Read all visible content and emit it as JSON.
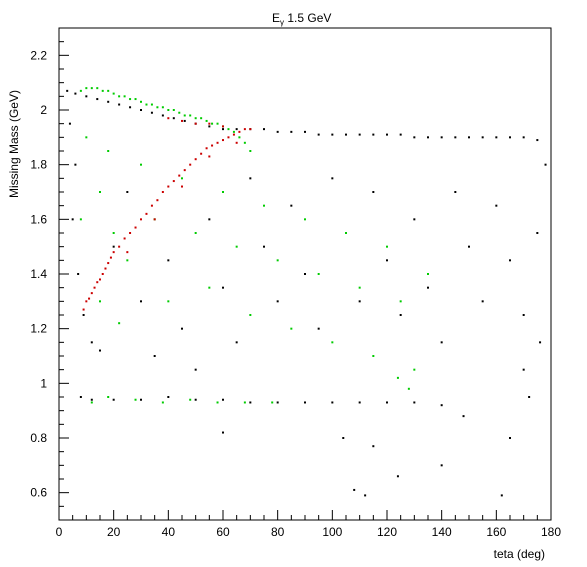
{
  "chart_data": {
    "type": "scatter",
    "title_main": "E",
    "title_sub": "γ",
    "title_rest": " 1.5 GeV",
    "xlabel": "teta (deg)",
    "ylabel": "Missing Mass (GeV)",
    "xlim": [
      0,
      180
    ],
    "ylim": [
      0.5,
      2.3
    ],
    "x_ticks": [
      0,
      20,
      40,
      60,
      80,
      100,
      120,
      140,
      160,
      180
    ],
    "x_tick_labels": [
      "0",
      "20",
      "40",
      "60",
      "80",
      "100",
      "120",
      "140",
      "160",
      "180"
    ],
    "y_ticks": [
      0.6,
      0.8,
      1.0,
      1.2,
      1.4,
      1.6,
      1.8,
      2.0,
      2.2
    ],
    "y_tick_labels": [
      "0.6",
      "0.8",
      "1",
      "1.2",
      "1.4",
      "1.6",
      "1.8",
      "2",
      "2.2"
    ],
    "grid": false,
    "series": [
      {
        "color": "#000000",
        "points": [
          [
            3,
            2.07
          ],
          [
            6,
            2.06
          ],
          [
            10,
            2.05
          ],
          [
            14,
            2.04
          ],
          [
            18,
            2.03
          ],
          [
            22,
            2.02
          ],
          [
            26,
            2.01
          ],
          [
            30,
            2.0
          ],
          [
            34,
            1.99
          ],
          [
            38,
            1.98
          ],
          [
            42,
            1.97
          ],
          [
            46,
            1.96
          ],
          [
            50,
            1.95
          ],
          [
            55,
            1.94
          ],
          [
            60,
            1.93
          ],
          [
            65,
            1.93
          ],
          [
            70,
            1.93
          ],
          [
            75,
            1.93
          ],
          [
            80,
            1.92
          ],
          [
            85,
            1.92
          ],
          [
            90,
            1.92
          ],
          [
            95,
            1.91
          ],
          [
            100,
            1.91
          ],
          [
            105,
            1.91
          ],
          [
            110,
            1.91
          ],
          [
            115,
            1.91
          ],
          [
            120,
            1.91
          ],
          [
            125,
            1.91
          ],
          [
            130,
            1.9
          ],
          [
            135,
            1.9
          ],
          [
            140,
            1.9
          ],
          [
            145,
            1.9
          ],
          [
            150,
            1.9
          ],
          [
            155,
            1.9
          ],
          [
            160,
            1.9
          ],
          [
            165,
            1.9
          ],
          [
            170,
            1.9
          ],
          [
            175,
            1.89
          ],
          [
            4,
            1.95
          ],
          [
            6,
            1.8
          ],
          [
            5,
            1.6
          ],
          [
            7,
            1.4
          ],
          [
            9,
            1.25
          ],
          [
            12,
            1.15
          ],
          [
            15,
            1.12
          ],
          [
            20,
            1.5
          ],
          [
            25,
            1.7
          ],
          [
            30,
            1.3
          ],
          [
            35,
            1.1
          ],
          [
            40,
            1.45
          ],
          [
            45,
            1.2
          ],
          [
            50,
            1.05
          ],
          [
            55,
            1.6
          ],
          [
            60,
            1.35
          ],
          [
            65,
            1.15
          ],
          [
            70,
            1.75
          ],
          [
            75,
            1.5
          ],
          [
            80,
            1.3
          ],
          [
            85,
            1.65
          ],
          [
            90,
            1.4
          ],
          [
            95,
            1.2
          ],
          [
            100,
            1.75
          ],
          [
            105,
            1.55
          ],
          [
            110,
            1.3
          ],
          [
            115,
            1.7
          ],
          [
            120,
            1.45
          ],
          [
            125,
            1.25
          ],
          [
            130,
            1.6
          ],
          [
            135,
            1.35
          ],
          [
            140,
            1.15
          ],
          [
            145,
            1.7
          ],
          [
            150,
            1.5
          ],
          [
            155,
            1.3
          ],
          [
            160,
            1.65
          ],
          [
            165,
            1.45
          ],
          [
            170,
            1.25
          ],
          [
            175,
            1.55
          ],
          [
            178,
            1.8
          ],
          [
            8,
            0.95
          ],
          [
            12,
            0.94
          ],
          [
            20,
            0.94
          ],
          [
            30,
            0.94
          ],
          [
            40,
            0.95
          ],
          [
            50,
            0.94
          ],
          [
            60,
            0.94
          ],
          [
            70,
            0.93
          ],
          [
            80,
            0.93
          ],
          [
            90,
            0.93
          ],
          [
            100,
            0.93
          ],
          [
            110,
            0.93
          ],
          [
            120,
            0.93
          ],
          [
            130,
            0.93
          ],
          [
            140,
            0.92
          ],
          [
            148,
            0.88
          ],
          [
            104,
            0.8
          ],
          [
            115,
            0.77
          ],
          [
            60,
            0.82
          ],
          [
            108,
            0.61
          ],
          [
            112,
            0.59
          ],
          [
            124,
            0.66
          ],
          [
            140,
            0.7
          ],
          [
            162,
            0.59
          ],
          [
            165,
            0.8
          ],
          [
            170,
            1.05
          ],
          [
            172,
            0.95
          ],
          [
            176,
            1.15
          ]
        ]
      },
      {
        "color": "#00cc00",
        "points": [
          [
            8,
            2.07
          ],
          [
            10,
            2.08
          ],
          [
            12,
            2.08
          ],
          [
            14,
            2.08
          ],
          [
            16,
            2.07
          ],
          [
            18,
            2.07
          ],
          [
            20,
            2.06
          ],
          [
            22,
            2.05
          ],
          [
            24,
            2.05
          ],
          [
            26,
            2.04
          ],
          [
            28,
            2.04
          ],
          [
            30,
            2.03
          ],
          [
            32,
            2.02
          ],
          [
            34,
            2.02
          ],
          [
            36,
            2.01
          ],
          [
            38,
            2.01
          ],
          [
            40,
            2.0
          ],
          [
            42,
            2.0
          ],
          [
            44,
            1.99
          ],
          [
            46,
            1.98
          ],
          [
            48,
            1.98
          ],
          [
            50,
            1.97
          ],
          [
            52,
            1.97
          ],
          [
            54,
            1.96
          ],
          [
            56,
            1.95
          ],
          [
            58,
            1.95
          ],
          [
            60,
            1.94
          ],
          [
            62,
            1.93
          ],
          [
            64,
            1.92
          ],
          [
            66,
            1.9
          ],
          [
            68,
            1.88
          ],
          [
            70,
            1.85
          ],
          [
            10,
            1.9
          ],
          [
            15,
            1.7
          ],
          [
            20,
            1.55
          ],
          [
            25,
            1.45
          ],
          [
            30,
            1.8
          ],
          [
            35,
            1.6
          ],
          [
            40,
            1.3
          ],
          [
            45,
            1.75
          ],
          [
            50,
            1.55
          ],
          [
            55,
            1.35
          ],
          [
            60,
            1.7
          ],
          [
            65,
            1.5
          ],
          [
            70,
            1.25
          ],
          [
            75,
            1.65
          ],
          [
            80,
            1.45
          ],
          [
            85,
            1.2
          ],
          [
            90,
            1.6
          ],
          [
            95,
            1.4
          ],
          [
            100,
            1.15
          ],
          [
            105,
            1.55
          ],
          [
            110,
            1.35
          ],
          [
            115,
            1.1
          ],
          [
            120,
            1.5
          ],
          [
            125,
            1.3
          ],
          [
            130,
            1.05
          ],
          [
            135,
            1.4
          ],
          [
            128,
            0.98
          ],
          [
            124,
            1.02
          ],
          [
            12,
            0.93
          ],
          [
            18,
            0.95
          ],
          [
            28,
            0.94
          ],
          [
            38,
            0.93
          ],
          [
            48,
            0.94
          ],
          [
            58,
            0.93
          ],
          [
            68,
            0.93
          ],
          [
            78,
            0.93
          ],
          [
            15,
            1.3
          ],
          [
            22,
            1.22
          ],
          [
            8,
            1.6
          ],
          [
            18,
            1.85
          ]
        ]
      },
      {
        "color": "#cc0000",
        "points": [
          [
            12,
            1.33
          ],
          [
            13,
            1.35
          ],
          [
            14,
            1.37
          ],
          [
            15,
            1.38
          ],
          [
            16,
            1.4
          ],
          [
            17,
            1.42
          ],
          [
            18,
            1.44
          ],
          [
            19,
            1.46
          ],
          [
            20,
            1.48
          ],
          [
            22,
            1.5
          ],
          [
            24,
            1.53
          ],
          [
            26,
            1.55
          ],
          [
            28,
            1.57
          ],
          [
            30,
            1.6
          ],
          [
            32,
            1.62
          ],
          [
            34,
            1.65
          ],
          [
            36,
            1.67
          ],
          [
            38,
            1.7
          ],
          [
            40,
            1.72
          ],
          [
            42,
            1.74
          ],
          [
            44,
            1.76
          ],
          [
            46,
            1.78
          ],
          [
            48,
            1.8
          ],
          [
            50,
            1.82
          ],
          [
            52,
            1.84
          ],
          [
            54,
            1.86
          ],
          [
            56,
            1.87
          ],
          [
            58,
            1.88
          ],
          [
            60,
            1.89
          ],
          [
            62,
            1.9
          ],
          [
            64,
            1.91
          ],
          [
            66,
            1.92
          ],
          [
            68,
            1.93
          ],
          [
            70,
            1.93
          ],
          [
            9,
            1.27
          ],
          [
            10,
            1.3
          ],
          [
            11,
            1.31
          ],
          [
            25,
            1.48
          ],
          [
            35,
            1.6
          ],
          [
            45,
            1.72
          ],
          [
            55,
            1.83
          ],
          [
            65,
            1.88
          ],
          [
            40,
            1.97
          ],
          [
            45,
            1.96
          ],
          [
            50,
            1.95
          ],
          [
            55,
            1.95
          ],
          [
            60,
            1.94
          ]
        ]
      }
    ]
  }
}
